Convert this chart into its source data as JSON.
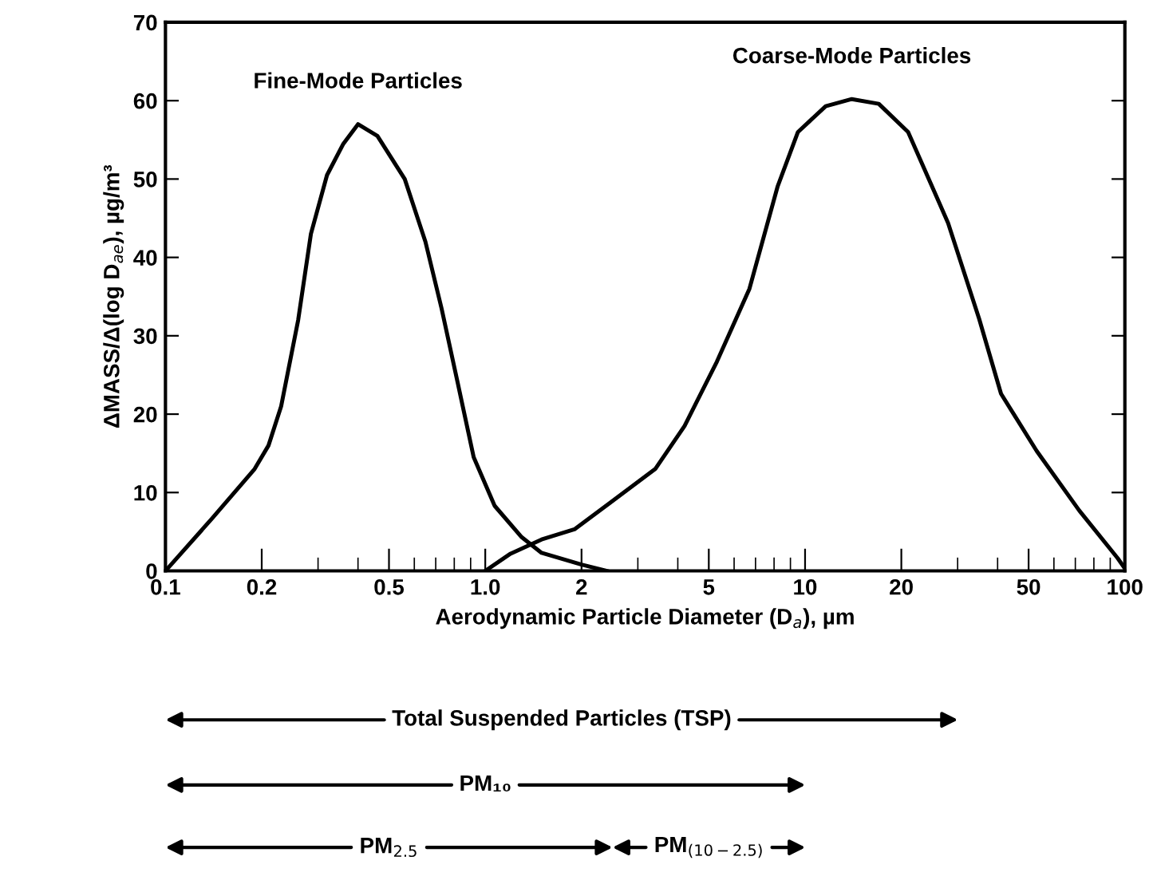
{
  "chart_data": {
    "type": "line",
    "xlabel": "Aerodynamic Particle Diameter (D$_{a}$), µm",
    "ylabel": "ΔMASS/Δ(log D$_{ae}$), µg/m³",
    "log": "x",
    "xlim": [
      0.1,
      100
    ],
    "ylim": [
      0,
      70
    ],
    "xticks": [
      0.1,
      0.2,
      0.5,
      {
        "value": 1,
        "label": "1.0"
      },
      2,
      5,
      10,
      20,
      50,
      100
    ],
    "yticks": [
      0,
      10,
      20,
      30,
      40,
      50,
      60,
      70
    ],
    "grid": false,
    "marker": "none",
    "line_style": "solid",
    "series": [
      {
        "name": "Fine-Mode Particles",
        "color": "#000000",
        "x": [
          0.1,
          0.14,
          0.19,
          0.21,
          0.23,
          0.26,
          0.285,
          0.32,
          0.36,
          0.4,
          0.46,
          0.56,
          0.65,
          0.73,
          0.82,
          0.92,
          1.07,
          1.3,
          1.5,
          2.0,
          2.4
        ],
        "values": [
          0,
          6.7,
          13,
          16,
          21,
          32,
          43,
          50.5,
          54.5,
          57,
          55.5,
          50,
          42,
          33.5,
          24,
          14.5,
          8.3,
          4.3,
          2.3,
          0.8,
          0
        ]
      },
      {
        "name": "Coarse-Mode Particles",
        "color": "#000000",
        "x": [
          1.0,
          1.2,
          1.5,
          1.9,
          3.4,
          4.2,
          5.3,
          6.7,
          8.2,
          9.5,
          11.6,
          14,
          17,
          21,
          28,
          35,
          41,
          53,
          72,
          95,
          100
        ],
        "values": [
          0,
          2.2,
          4,
          5.3,
          13,
          18.5,
          26.7,
          36,
          49,
          56,
          59.3,
          60.2,
          59.6,
          56,
          44.4,
          32.2,
          22.6,
          15.3,
          7.7,
          1.6,
          0.3
        ]
      }
    ],
    "annotations": [
      "Total Suspended Particles (TSP)",
      "PM₁₀",
      "PM$_{2.5}$",
      "PM$_{(10−2.5)}$"
    ]
  }
}
